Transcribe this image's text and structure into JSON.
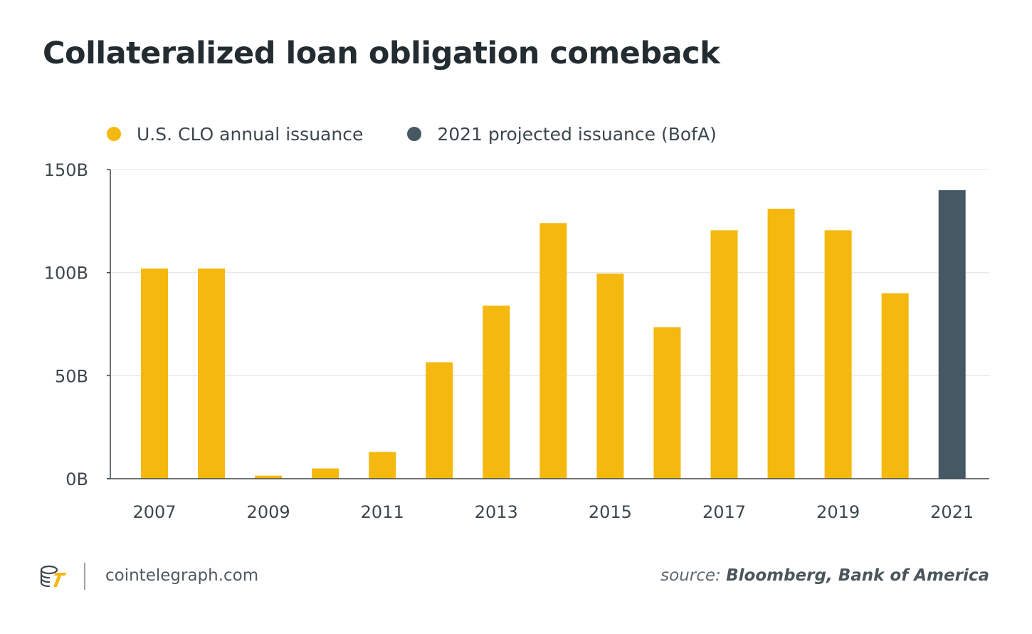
{
  "title": "Collateralized loan obligation comeback",
  "legend": [
    {
      "label": "U.S. CLO annual issuance",
      "color": "#f5b80f"
    },
    {
      "label": "2021 projected issuance (BofA)",
      "color": "#465863"
    }
  ],
  "chart_data": {
    "type": "bar",
    "categories": [
      "2007",
      "2008",
      "2009",
      "2010",
      "2011",
      "2012",
      "2013",
      "2014",
      "2015",
      "2016",
      "2017",
      "2018",
      "2019",
      "2020",
      "2021"
    ],
    "x_tick_labels": [
      "2007",
      "",
      "2009",
      "",
      "2011",
      "",
      "2013",
      "",
      "2015",
      "",
      "2017",
      "",
      "2019",
      "",
      "2021"
    ],
    "series": [
      {
        "name": "U.S. CLO annual issuance",
        "color": "#f5b80f",
        "values": [
          102,
          102,
          1.5,
          5,
          13,
          56.5,
          84,
          124,
          99.5,
          73.5,
          120.5,
          131,
          120.5,
          90,
          null
        ]
      },
      {
        "name": "2021 projected issuance (BofA)",
        "color": "#465863",
        "values": [
          null,
          null,
          null,
          null,
          null,
          null,
          null,
          null,
          null,
          null,
          null,
          null,
          null,
          null,
          140
        ]
      }
    ],
    "y_ticks": [
      0,
      50,
      100,
      150
    ],
    "y_tick_labels": [
      "0B",
      "50B",
      "100B",
      "150B"
    ],
    "ylim": [
      0,
      150
    ],
    "grid": true,
    "legend_position": "top-left",
    "title": "Collateralized loan obligation comeback",
    "xlabel": "",
    "ylabel": ""
  },
  "footer": {
    "logo_icon": "cointelegraph-logo-icon",
    "site": "cointelegraph.com",
    "source_prefix": "source:",
    "source_text": "Bloomberg, Bank of America"
  }
}
